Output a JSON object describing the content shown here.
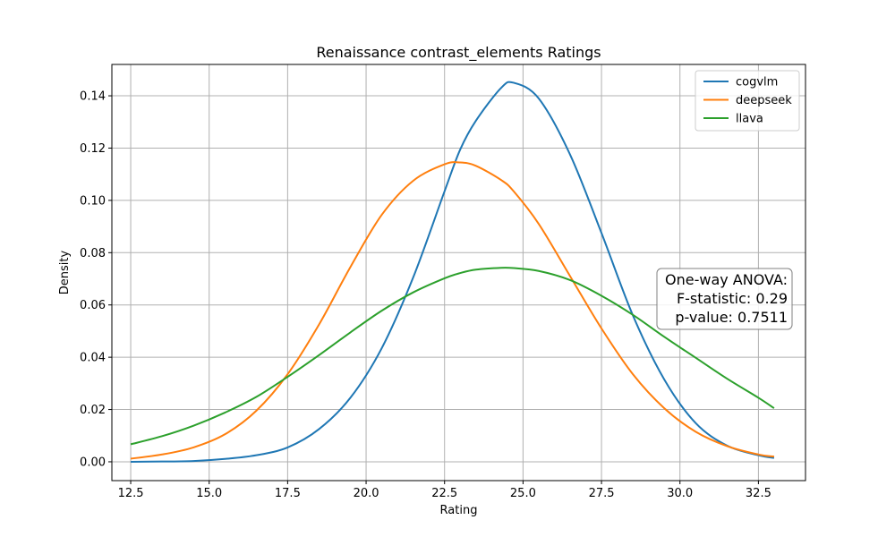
{
  "chart_data": {
    "type": "line",
    "title": "Renaissance contrast_elements Ratings",
    "xlabel": "Rating",
    "ylabel": "Density",
    "xlim": [
      11.9,
      34.0
    ],
    "ylim": [
      -0.0072,
      0.152
    ],
    "xticks": [
      12.5,
      15.0,
      17.5,
      20.0,
      22.5,
      25.0,
      27.5,
      30.0,
      32.5
    ],
    "yticks": [
      0.0,
      0.02,
      0.04,
      0.06,
      0.08,
      0.1,
      0.12,
      0.14
    ],
    "xtick_labels": [
      "12.5",
      "15.0",
      "17.5",
      "20.0",
      "22.5",
      "25.0",
      "27.5",
      "30.0",
      "32.5"
    ],
    "ytick_labels": [
      "0.00",
      "0.02",
      "0.04",
      "0.06",
      "0.08",
      "0.10",
      "0.12",
      "0.14"
    ],
    "grid": true,
    "legend_position": "top-right",
    "x": [
      12.5,
      13.5,
      14.5,
      15.5,
      16.5,
      17.5,
      18.5,
      19.5,
      20.5,
      21.5,
      22.5,
      23.0,
      23.5,
      24.3,
      24.7,
      25.5,
      26.5,
      27.5,
      28.5,
      29.5,
      30.5,
      31.5,
      32.5,
      33.0
    ],
    "series": [
      {
        "name": "cogvlm",
        "color": "#1f77b4",
        "values": [
          0.0,
          0.0001,
          0.0003,
          0.0011,
          0.0025,
          0.0055,
          0.0125,
          0.0245,
          0.0435,
          0.0705,
          0.1035,
          0.1195,
          0.1305,
          0.143,
          0.145,
          0.139,
          0.1175,
          0.0875,
          0.056,
          0.0315,
          0.0148,
          0.0062,
          0.0025,
          0.0015
        ]
      },
      {
        "name": "deepseek",
        "color": "#ff7f0e",
        "values": [
          0.0012,
          0.0028,
          0.0055,
          0.0105,
          0.0195,
          0.0335,
          0.0525,
          0.0745,
          0.0945,
          0.1075,
          0.1138,
          0.1145,
          0.1132,
          0.1078,
          0.1035,
          0.091,
          0.071,
          0.051,
          0.0335,
          0.0205,
          0.0115,
          0.006,
          0.0028,
          0.002
        ]
      },
      {
        "name": "llava",
        "color": "#2ca02c",
        "values": [
          0.0067,
          0.0098,
          0.0138,
          0.0188,
          0.0248,
          0.0325,
          0.0408,
          0.0495,
          0.0578,
          0.0648,
          0.0702,
          0.0722,
          0.0735,
          0.0742,
          0.0741,
          0.073,
          0.0695,
          0.0635,
          0.0562,
          0.0478,
          0.0398,
          0.0318,
          0.0245,
          0.0205
        ]
      }
    ],
    "annotation": {
      "lines": [
        "One-way ANOVA:",
        "F-statistic: 0.29",
        "p-value: 0.7511"
      ]
    }
  }
}
